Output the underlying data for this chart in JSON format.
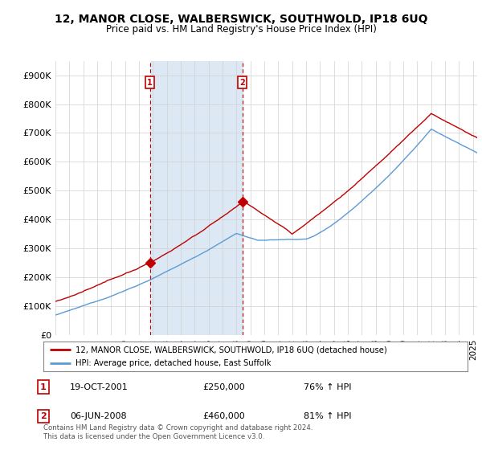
{
  "title": "12, MANOR CLOSE, WALBERSWICK, SOUTHWOLD, IP18 6UQ",
  "subtitle": "Price paid vs. HM Land Registry's House Price Index (HPI)",
  "ylabel_ticks": [
    "£0",
    "£100K",
    "£200K",
    "£300K",
    "£400K",
    "£500K",
    "£600K",
    "£700K",
    "£800K",
    "£900K"
  ],
  "ytick_values": [
    0,
    100000,
    200000,
    300000,
    400000,
    500000,
    600000,
    700000,
    800000,
    900000
  ],
  "ylim": [
    0,
    950000
  ],
  "xlim_start": 1995.0,
  "xlim_end": 2025.3,
  "hpi_color": "#5b9bd5",
  "price_color": "#c00000",
  "vline_color": "#c00000",
  "shade_color": "#dce9f5",
  "legend_label_price": "12, MANOR CLOSE, WALBERSWICK, SOUTHWOLD, IP18 6UQ (detached house)",
  "legend_label_hpi": "HPI: Average price, detached house, East Suffolk",
  "sale1_x": 2001.79,
  "sale1_y": 250000,
  "sale1_label": "1",
  "sale2_x": 2008.42,
  "sale2_y": 460000,
  "sale2_label": "2",
  "footer": "Contains HM Land Registry data © Crown copyright and database right 2024.\nThis data is licensed under the Open Government Licence v3.0.",
  "background_color": "#ffffff",
  "grid_color": "#d0d0d0"
}
